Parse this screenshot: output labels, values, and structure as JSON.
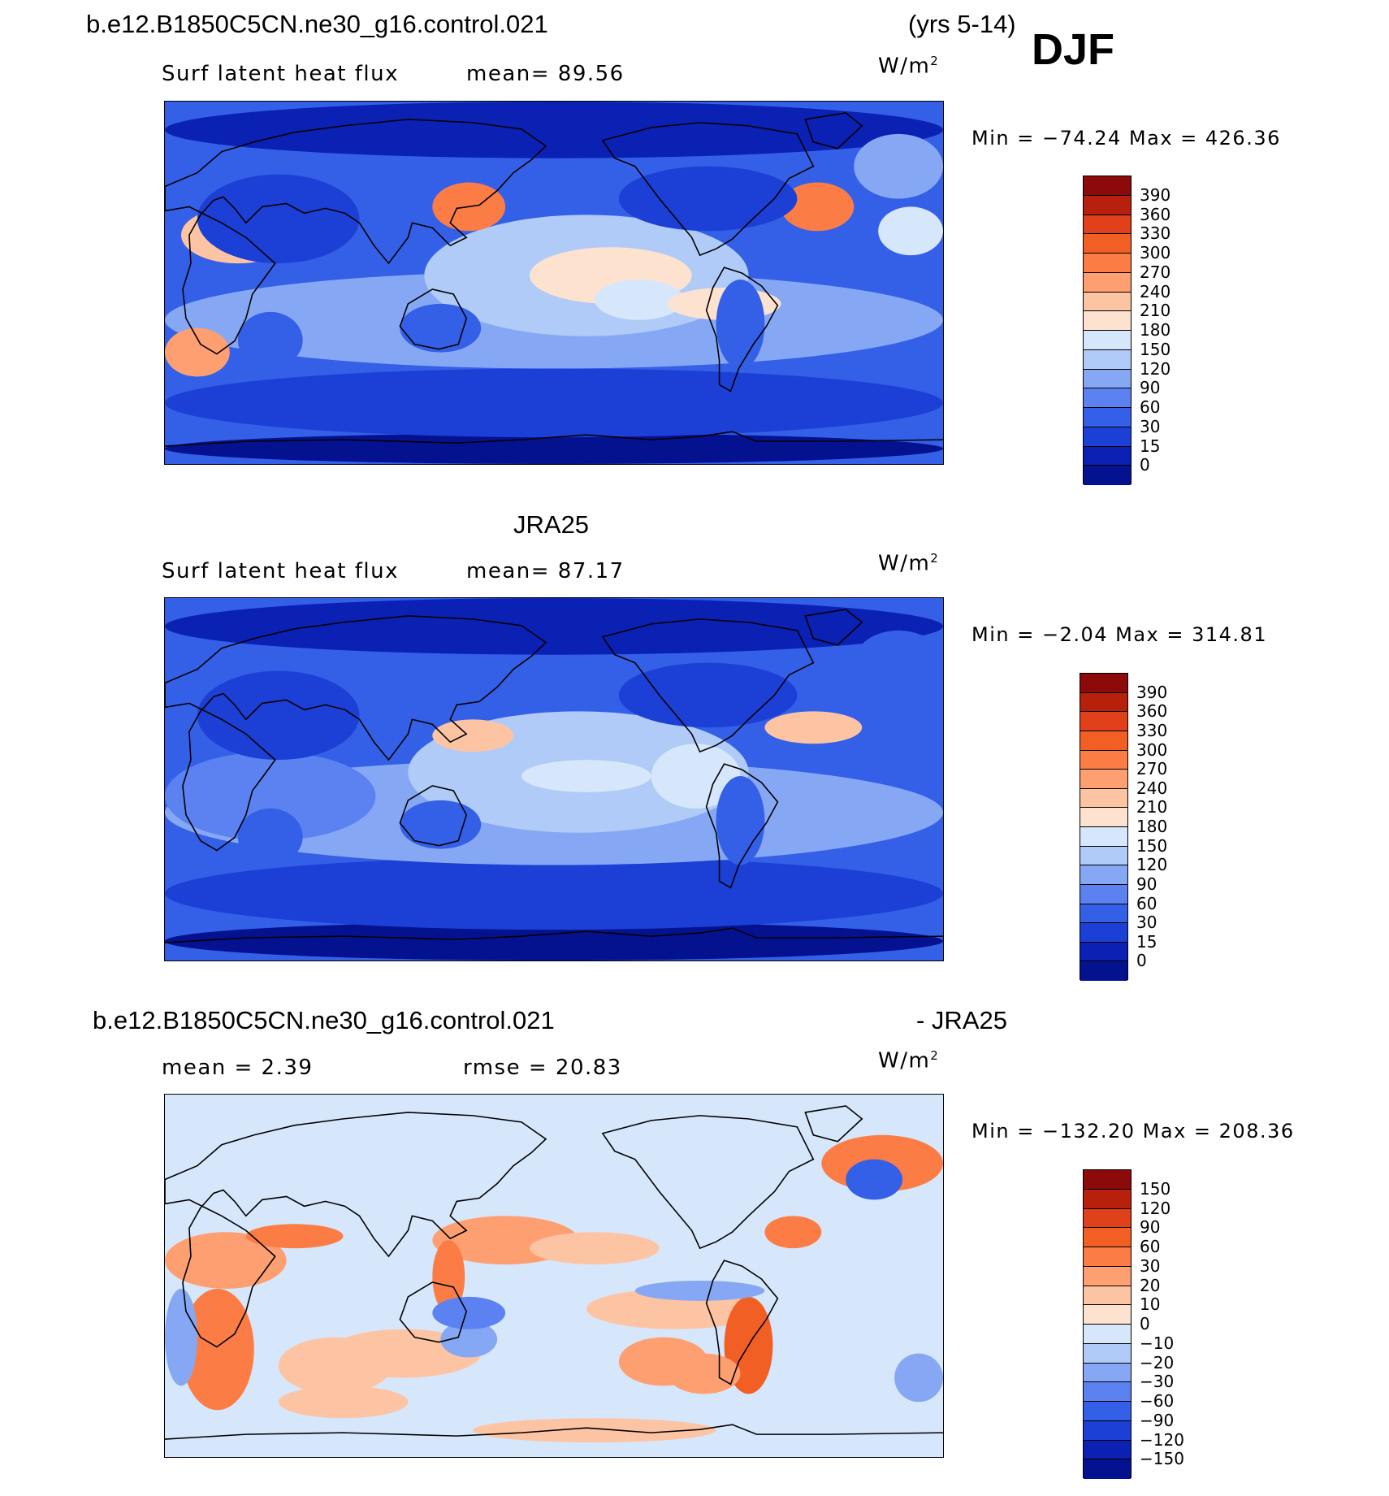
{
  "header": {
    "case_name": "b.e12.B1850C5CN.ne30_g16.control.021",
    "years": "(yrs 5-14)",
    "season": "DJF"
  },
  "panels": [
    {
      "title": "",
      "field_label": "Surf latent heat flux",
      "stat1": "mean=  89.56",
      "stat2": "",
      "units": "W/m",
      "units_sup": "2",
      "minmax": "Min = −74.24 Max = 426.36",
      "colorbar": {
        "labels": [
          "390",
          "360",
          "330",
          "300",
          "270",
          "240",
          "210",
          "180",
          "150",
          "120",
          "90",
          "60",
          "30",
          "15",
          "0"
        ],
        "colors": [
          "#8c0a0a",
          "#b8200e",
          "#e0401a",
          "#f25f24",
          "#fb7d45",
          "#fd9f71",
          "#fdc4a4",
          "#fde3cf",
          "#d6e7fb",
          "#b0cbf7",
          "#86a8f4",
          "#5b82f0",
          "#3460e8",
          "#1c3fd6",
          "#0a21b4",
          "#041290"
        ]
      }
    },
    {
      "title": "JRA25",
      "field_label": "Surf latent heat flux",
      "stat1": "mean=  87.17",
      "stat2": "",
      "units": "W/m",
      "units_sup": "2",
      "minmax": "Min =  −2.04 Max = 314.81",
      "colorbar": {
        "labels": [
          "390",
          "360",
          "330",
          "300",
          "270",
          "240",
          "210",
          "180",
          "150",
          "120",
          "90",
          "60",
          "30",
          "15",
          "0"
        ],
        "colors": [
          "#8c0a0a",
          "#b8200e",
          "#e0401a",
          "#f25f24",
          "#fb7d45",
          "#fd9f71",
          "#fdc4a4",
          "#fde3cf",
          "#d6e7fb",
          "#b0cbf7",
          "#86a8f4",
          "#5b82f0",
          "#3460e8",
          "#1c3fd6",
          "#0a21b4",
          "#041290"
        ]
      }
    },
    {
      "title_left": "b.e12.B1850C5CN.ne30_g16.control.021",
      "title_right": "- JRA25",
      "field_label": "",
      "stat1": "mean =    2.39",
      "stat2": "rmse =   20.83",
      "units": "W/m",
      "units_sup": "2",
      "minmax": "Min = −132.20 Max = 208.36",
      "colorbar": {
        "labels": [
          "150",
          "120",
          "90",
          "60",
          "30",
          "20",
          "10",
          "0",
          "−10",
          "−20",
          "−30",
          "−60",
          "−90",
          "−120",
          "−150"
        ],
        "colors": [
          "#8c0a0a",
          "#b8200e",
          "#e0401a",
          "#f25f24",
          "#fb7d45",
          "#fd9f71",
          "#fdc4a4",
          "#fde3cf",
          "#d6e7fb",
          "#b0cbf7",
          "#86a8f4",
          "#5b82f0",
          "#3460e8",
          "#1c3fd6",
          "#0a21b4",
          "#041290"
        ]
      }
    }
  ]
}
